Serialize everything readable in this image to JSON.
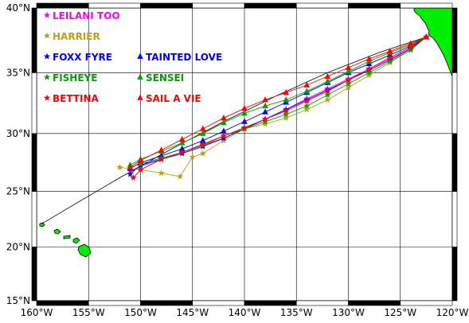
{
  "chart_data": {
    "type": "map",
    "projection": "mercator",
    "lon_range": [
      -160,
      -120
    ],
    "lat_range": [
      15,
      40
    ],
    "x_ticks": [
      {
        "value": -160,
        "label": "160°W"
      },
      {
        "value": -155,
        "label": "155°W"
      },
      {
        "value": -150,
        "label": "150°W"
      },
      {
        "value": -145,
        "label": "145°W"
      },
      {
        "value": -140,
        "label": "140°W"
      },
      {
        "value": -135,
        "label": "135°W"
      },
      {
        "value": -130,
        "label": "130°W"
      },
      {
        "value": -125,
        "label": "125°W"
      },
      {
        "value": -120,
        "label": "120°W"
      }
    ],
    "y_ticks": [
      {
        "value": 15,
        "label": "15°N"
      },
      {
        "value": 20,
        "label": "20°N"
      },
      {
        "value": 25,
        "label": "25°N"
      },
      {
        "value": 30,
        "label": "30°N"
      },
      {
        "value": 35,
        "label": "35°N"
      },
      {
        "value": 40,
        "label": "40°N"
      }
    ],
    "grid": true,
    "land_color": "#00ee00",
    "great_circle": {
      "color": "#000000",
      "points": [
        [
          -122.5,
          37.8
        ],
        [
          -127,
          36.6
        ],
        [
          -132,
          35.0
        ],
        [
          -137,
          33.1
        ],
        [
          -142,
          31.0
        ],
        [
          -147,
          28.7
        ],
        [
          -152,
          26.2
        ],
        [
          -157,
          23.5
        ],
        [
          -159.5,
          22.1
        ]
      ]
    },
    "series": [
      {
        "name": "LEILANI TOO",
        "color": "#ff00ff",
        "marker": "star",
        "points": [
          [
            -122.5,
            37.8
          ],
          [
            -124,
            36.9
          ],
          [
            -126,
            36.1
          ],
          [
            -128,
            35.3
          ],
          [
            -130,
            34.5
          ],
          [
            -132,
            33.7
          ],
          [
            -134,
            32.9
          ],
          [
            -136,
            32.0
          ],
          [
            -138,
            31.2
          ],
          [
            -140,
            30.4
          ],
          [
            -142,
            29.6
          ],
          [
            -144,
            29.0
          ],
          [
            -146,
            28.4
          ],
          [
            -148,
            27.8
          ],
          [
            -150,
            27.2
          ],
          [
            -151,
            26.8
          ]
        ]
      },
      {
        "name": "HARRIER",
        "color": "#b8a018",
        "marker": "star",
        "points": [
          [
            -122.5,
            37.8
          ],
          [
            -124,
            36.8
          ],
          [
            -126,
            35.8
          ],
          [
            -128,
            34.8
          ],
          [
            -130,
            33.8
          ],
          [
            -132,
            32.8
          ],
          [
            -134,
            32.0
          ],
          [
            -136,
            31.3
          ],
          [
            -138,
            30.8
          ],
          [
            -140,
            30.4
          ],
          [
            -142,
            29.4
          ],
          [
            -144,
            28.3
          ],
          [
            -145,
            28.0
          ],
          [
            -146.2,
            26.3
          ],
          [
            -148,
            26.6
          ],
          [
            -150,
            26.9
          ],
          [
            -152,
            27.1
          ]
        ]
      },
      {
        "name": "FOXX FYRE",
        "color": "#0000ff",
        "marker": "star",
        "points": [
          [
            -122.5,
            37.8
          ],
          [
            -124,
            36.9
          ],
          [
            -126,
            36.0
          ],
          [
            -128,
            35.2
          ],
          [
            -130,
            34.4
          ],
          [
            -132,
            33.6
          ],
          [
            -134,
            32.8
          ],
          [
            -136,
            32.0
          ],
          [
            -138,
            31.2
          ],
          [
            -140,
            30.4
          ],
          [
            -142,
            29.6
          ],
          [
            -144,
            28.9
          ],
          [
            -146,
            28.3
          ],
          [
            -148,
            27.8
          ],
          [
            -150,
            27.3
          ],
          [
            -151,
            26.5
          ]
        ]
      },
      {
        "name": "TAINTED LOVE",
        "color": "#0000ff",
        "marker": "triangle",
        "points": [
          [
            -122.5,
            37.8
          ],
          [
            -124,
            37.1
          ],
          [
            -126,
            36.4
          ],
          [
            -128,
            35.7
          ],
          [
            -130,
            35.0
          ],
          [
            -132,
            34.2
          ],
          [
            -134,
            33.4
          ],
          [
            -136,
            32.6
          ],
          [
            -138,
            31.8
          ],
          [
            -140,
            31.0
          ],
          [
            -142,
            30.2
          ],
          [
            -144,
            29.4
          ],
          [
            -146,
            28.7
          ],
          [
            -148,
            28.1
          ],
          [
            -150,
            27.5
          ],
          [
            -151,
            27.0
          ]
        ]
      },
      {
        "name": "FISHEYE",
        "color": "#00a000",
        "marker": "star",
        "points": [
          [
            -122.5,
            37.8
          ],
          [
            -124,
            36.8
          ],
          [
            -126,
            35.9
          ],
          [
            -128,
            35.0
          ],
          [
            -130,
            34.1
          ],
          [
            -132,
            33.2
          ],
          [
            -134,
            32.3
          ],
          [
            -136,
            31.6
          ],
          [
            -138,
            31.0
          ],
          [
            -140,
            30.4
          ],
          [
            -142,
            29.8
          ],
          [
            -144,
            29.0
          ],
          [
            -146,
            28.4
          ],
          [
            -148,
            27.9
          ],
          [
            -150,
            27.4
          ]
        ]
      },
      {
        "name": "SENSEI",
        "color": "#00a000",
        "marker": "triangle",
        "points": [
          [
            -122.5,
            37.8
          ],
          [
            -124,
            37.2
          ],
          [
            -126,
            36.6
          ],
          [
            -128,
            35.9
          ],
          [
            -130,
            35.1
          ],
          [
            -132,
            34.3
          ],
          [
            -134,
            33.5
          ],
          [
            -136,
            32.8
          ],
          [
            -138,
            32.3
          ],
          [
            -140,
            31.7
          ],
          [
            -142,
            30.9
          ],
          [
            -144,
            30.0
          ],
          [
            -146,
            29.2
          ],
          [
            -148,
            28.5
          ],
          [
            -150,
            27.8
          ],
          [
            -151,
            27.3
          ]
        ]
      },
      {
        "name": "BETTINA",
        "color": "#ff0000",
        "marker": "star",
        "points": [
          [
            -122.5,
            37.8
          ],
          [
            -124,
            37.0
          ],
          [
            -126,
            36.2
          ],
          [
            -128,
            35.3
          ],
          [
            -130,
            34.4
          ],
          [
            -132,
            33.5
          ],
          [
            -134,
            32.7
          ],
          [
            -136,
            31.9
          ],
          [
            -138,
            31.2
          ],
          [
            -140,
            30.5
          ],
          [
            -142,
            29.8
          ],
          [
            -144,
            29.1
          ],
          [
            -146,
            28.4
          ],
          [
            -148,
            27.8
          ],
          [
            -150,
            26.9
          ],
          [
            -150.7,
            26.2
          ]
        ]
      },
      {
        "name": "SAIL A VIE",
        "color": "#ff0000",
        "marker": "triangle",
        "points": [
          [
            -122.5,
            37.8
          ],
          [
            -124,
            37.3
          ],
          [
            -126,
            36.7
          ],
          [
            -128,
            36.1
          ],
          [
            -130,
            35.4
          ],
          [
            -132,
            34.7
          ],
          [
            -134,
            34.0
          ],
          [
            -136,
            33.4
          ],
          [
            -138,
            32.8
          ],
          [
            -140,
            32.1
          ],
          [
            -142,
            31.3
          ],
          [
            -144,
            30.4
          ],
          [
            -146,
            29.5
          ],
          [
            -148,
            28.6
          ],
          [
            -150,
            27.7
          ],
          [
            -151,
            27.1
          ]
        ]
      }
    ]
  }
}
